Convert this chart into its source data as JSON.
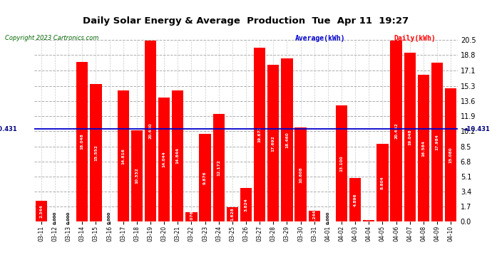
{
  "title": "Daily Solar Energy & Average  Production  Tue  Apr 11  19:27",
  "copyright": "Copyright 2023 Cartronics.com",
  "categories": [
    "03-11",
    "03-12",
    "03-13",
    "03-14",
    "03-15",
    "03-16",
    "03-17",
    "03-18",
    "03-19",
    "03-20",
    "03-21",
    "03-22",
    "03-23",
    "03-24",
    "03-25",
    "03-26",
    "03-27",
    "03-28",
    "03-29",
    "03-30",
    "03-31",
    "04-01",
    "04-02",
    "04-03",
    "04-04",
    "04-05",
    "04-06",
    "04-07",
    "04-08",
    "04-09",
    "04-10"
  ],
  "values": [
    2.344,
    0.0,
    0.0,
    18.048,
    15.552,
    0.0,
    14.816,
    10.332,
    20.46,
    14.044,
    14.844,
    1.076,
    9.876,
    12.172,
    1.628,
    3.824,
    19.672,
    17.692,
    18.46,
    10.608,
    1.244,
    0.0,
    13.1,
    4.896,
    0.212,
    8.804,
    20.452,
    19.048,
    16.584,
    17.984,
    15.08
  ],
  "average": 10.431,
  "yticks": [
    0.0,
    1.7,
    3.4,
    5.1,
    6.8,
    8.5,
    10.2,
    11.9,
    13.6,
    15.3,
    17.1,
    18.8,
    20.5
  ],
  "ylim": [
    0.0,
    20.5
  ],
  "bar_color": "#ff0000",
  "avg_line_color": "#0000cc",
  "title_color": "#000000",
  "copyright_color": "#006600",
  "legend_avg_color": "#0000cc",
  "legend_daily_color": "#ff0000",
  "background_color": "#ffffff",
  "grid_color": "#999999",
  "value_label_color": "#ffffff",
  "avg_label_left_color": "#000080",
  "avg_label_right_color": "#000080"
}
